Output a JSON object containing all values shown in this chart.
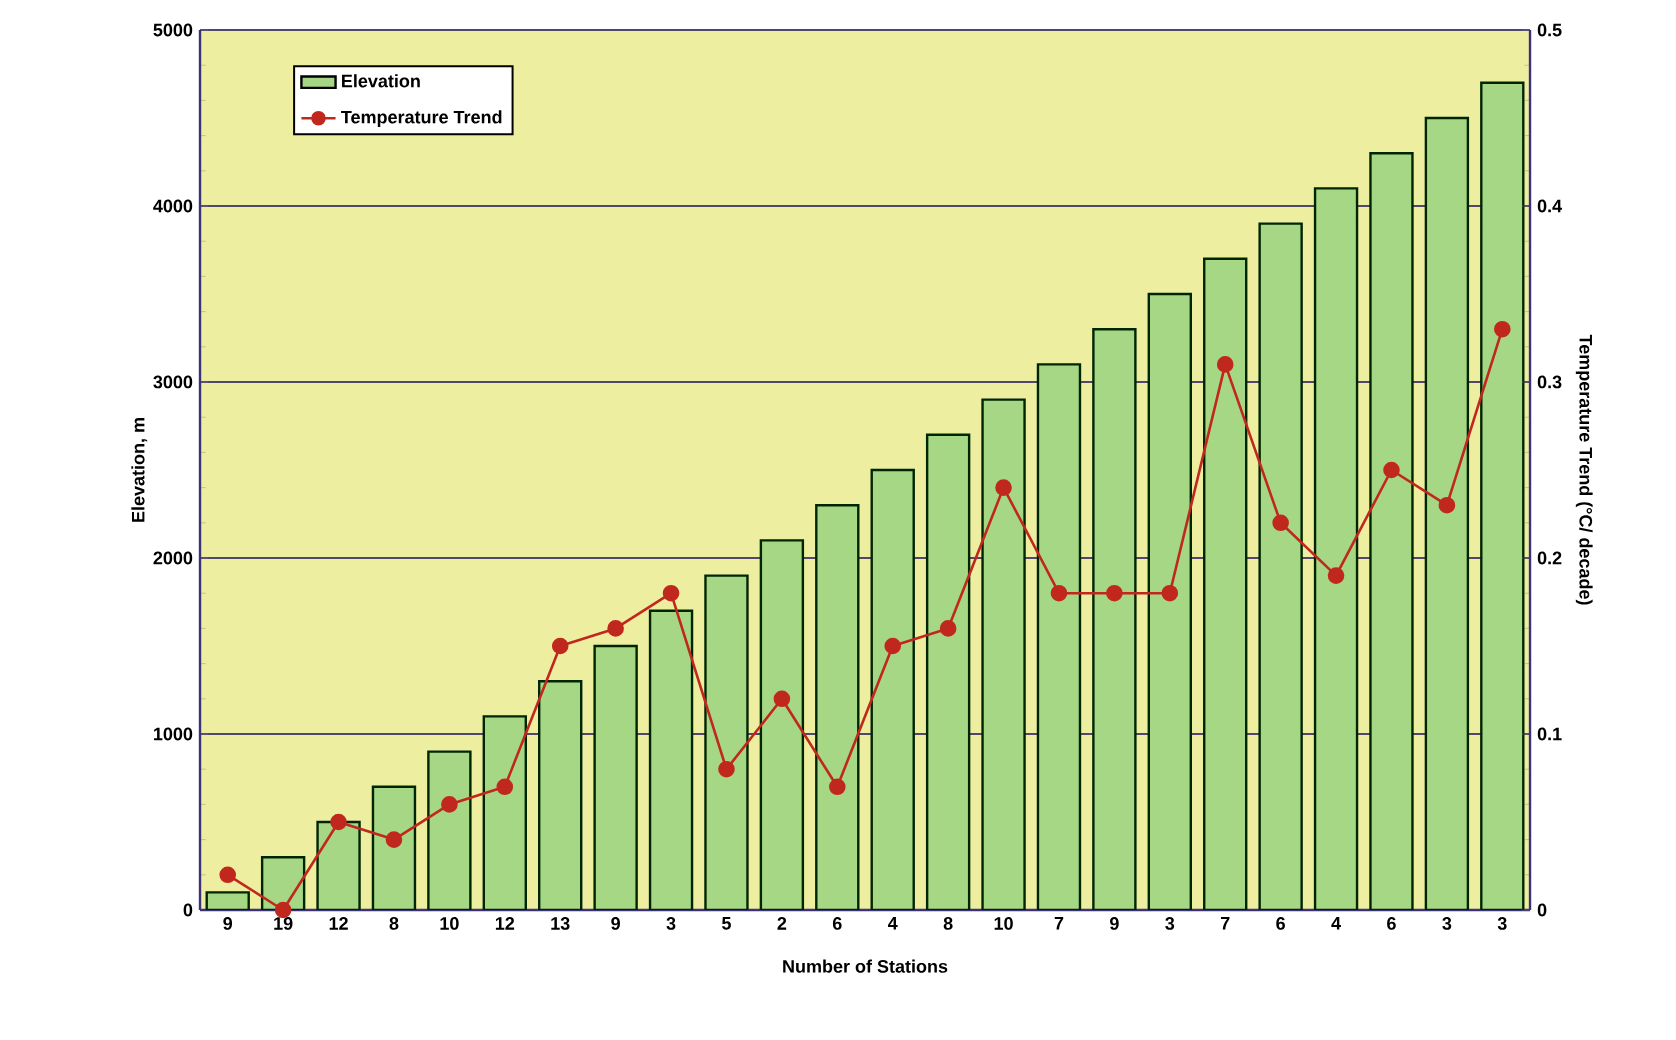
{
  "chart_data": {
    "type": "bar",
    "xlabel": "Number of Stations",
    "ylabel": "Elevation, m",
    "y2label": "Temperature Trend (°C/ decade)",
    "categories": [
      "9",
      "19",
      "12",
      "8",
      "10",
      "12",
      "13",
      "9",
      "3",
      "5",
      "2",
      "6",
      "4",
      "8",
      "10",
      "7",
      "9",
      "3",
      "7",
      "6",
      "4",
      "6",
      "3",
      "3"
    ],
    "series": [
      {
        "name": "Elevation",
        "color": "#a6d785",
        "values": [
          100,
          300,
          500,
          700,
          900,
          1100,
          1300,
          1500,
          1700,
          1900,
          2100,
          2300,
          2500,
          2700,
          2900,
          3100,
          3300,
          3500,
          3700,
          3900,
          4100,
          4300,
          4500,
          4700
        ]
      },
      {
        "name": "Temperature Trend",
        "type": "line",
        "axis": "y2",
        "color": "#c0281e",
        "values": [
          0.02,
          0,
          0.05,
          0.04,
          0.06,
          0.07,
          0.15,
          0.16,
          0.18,
          0.08,
          0.12,
          0.07,
          0.15,
          0.16,
          0.24,
          0.18,
          0.18,
          0.18,
          0.31,
          0.22,
          0.19,
          0.25,
          0.23,
          0.33
        ]
      }
    ],
    "ylim": [
      0,
      5000
    ],
    "yticks": [
      0,
      1000,
      2000,
      3000,
      4000,
      5000
    ],
    "y2lim": [
      0,
      0.5
    ],
    "y2ticks": [
      0,
      0.1,
      0.2,
      0.3,
      0.4,
      0.5
    ],
    "grid": "y",
    "legend": "top left",
    "marker": "circle"
  }
}
